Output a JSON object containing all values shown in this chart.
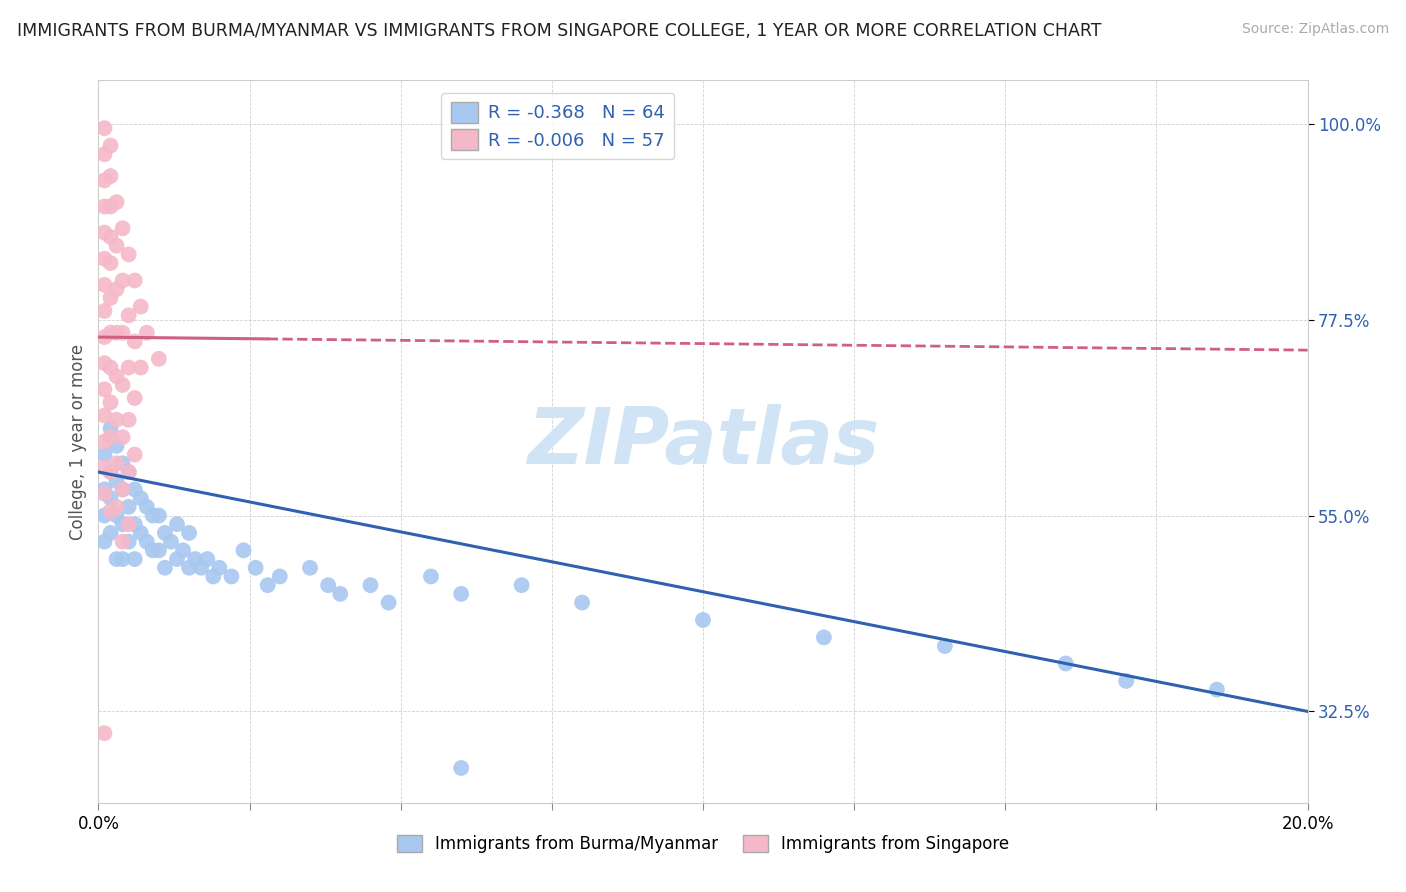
{
  "title": "IMMIGRANTS FROM BURMA/MYANMAR VS IMMIGRANTS FROM SINGAPORE COLLEGE, 1 YEAR OR MORE CORRELATION CHART",
  "source": "Source: ZipAtlas.com",
  "xlabel_blue": "Immigrants from Burma/Myanmar",
  "xlabel_pink": "Immigrants from Singapore",
  "ylabel": "College, 1 year or more",
  "xlim": [
    0.0,
    0.2
  ],
  "ylim": [
    0.22,
    1.05
  ],
  "yticks": [
    0.325,
    0.55,
    0.775,
    1.0
  ],
  "ytick_labels": [
    "32.5%",
    "55.0%",
    "77.5%",
    "100.0%"
  ],
  "xticks": [
    0.0,
    0.025,
    0.05,
    0.075,
    0.1,
    0.125,
    0.15,
    0.175,
    0.2
  ],
  "R_blue": -0.368,
  "N_blue": 64,
  "R_pink": -0.006,
  "N_pink": 57,
  "blue_color": "#a8c8f0",
  "pink_color": "#f5b8c8",
  "blue_line_color": "#3060b0",
  "pink_line_color": "#d06080",
  "watermark": "ZIPatlas",
  "watermark_color": "#d0e4f5",
  "background_color": "#ffffff",
  "title_fontsize": 12.5,
  "blue_scatter": [
    [
      0.001,
      0.62
    ],
    [
      0.001,
      0.58
    ],
    [
      0.001,
      0.55
    ],
    [
      0.001,
      0.52
    ],
    [
      0.002,
      0.65
    ],
    [
      0.002,
      0.6
    ],
    [
      0.002,
      0.57
    ],
    [
      0.002,
      0.53
    ],
    [
      0.003,
      0.63
    ],
    [
      0.003,
      0.59
    ],
    [
      0.003,
      0.55
    ],
    [
      0.003,
      0.5
    ],
    [
      0.004,
      0.61
    ],
    [
      0.004,
      0.58
    ],
    [
      0.004,
      0.54
    ],
    [
      0.004,
      0.5
    ],
    [
      0.005,
      0.6
    ],
    [
      0.005,
      0.56
    ],
    [
      0.005,
      0.52
    ],
    [
      0.006,
      0.58
    ],
    [
      0.006,
      0.54
    ],
    [
      0.006,
      0.5
    ],
    [
      0.007,
      0.57
    ],
    [
      0.007,
      0.53
    ],
    [
      0.008,
      0.56
    ],
    [
      0.008,
      0.52
    ],
    [
      0.009,
      0.55
    ],
    [
      0.009,
      0.51
    ],
    [
      0.01,
      0.55
    ],
    [
      0.01,
      0.51
    ],
    [
      0.011,
      0.53
    ],
    [
      0.011,
      0.49
    ],
    [
      0.012,
      0.52
    ],
    [
      0.013,
      0.54
    ],
    [
      0.013,
      0.5
    ],
    [
      0.014,
      0.51
    ],
    [
      0.015,
      0.53
    ],
    [
      0.015,
      0.49
    ],
    [
      0.016,
      0.5
    ],
    [
      0.017,
      0.49
    ],
    [
      0.018,
      0.5
    ],
    [
      0.019,
      0.48
    ],
    [
      0.02,
      0.49
    ],
    [
      0.022,
      0.48
    ],
    [
      0.024,
      0.51
    ],
    [
      0.026,
      0.49
    ],
    [
      0.028,
      0.47
    ],
    [
      0.03,
      0.48
    ],
    [
      0.035,
      0.49
    ],
    [
      0.038,
      0.47
    ],
    [
      0.04,
      0.46
    ],
    [
      0.045,
      0.47
    ],
    [
      0.048,
      0.45
    ],
    [
      0.055,
      0.48
    ],
    [
      0.06,
      0.46
    ],
    [
      0.07,
      0.47
    ],
    [
      0.08,
      0.45
    ],
    [
      0.1,
      0.43
    ],
    [
      0.12,
      0.41
    ],
    [
      0.14,
      0.4
    ],
    [
      0.16,
      0.38
    ],
    [
      0.17,
      0.36
    ],
    [
      0.185,
      0.35
    ],
    [
      0.06,
      0.26
    ]
  ],
  "pink_scatter": [
    [
      0.001,
      0.995
    ],
    [
      0.001,
      0.965
    ],
    [
      0.001,
      0.935
    ],
    [
      0.001,
      0.905
    ],
    [
      0.001,
      0.875
    ],
    [
      0.001,
      0.845
    ],
    [
      0.001,
      0.815
    ],
    [
      0.001,
      0.785
    ],
    [
      0.002,
      0.975
    ],
    [
      0.002,
      0.94
    ],
    [
      0.002,
      0.905
    ],
    [
      0.002,
      0.87
    ],
    [
      0.001,
      0.755
    ],
    [
      0.001,
      0.725
    ],
    [
      0.001,
      0.695
    ],
    [
      0.001,
      0.665
    ],
    [
      0.001,
      0.635
    ],
    [
      0.001,
      0.605
    ],
    [
      0.001,
      0.575
    ],
    [
      0.002,
      0.84
    ],
    [
      0.002,
      0.8
    ],
    [
      0.002,
      0.76
    ],
    [
      0.002,
      0.72
    ],
    [
      0.002,
      0.68
    ],
    [
      0.002,
      0.64
    ],
    [
      0.002,
      0.6
    ],
    [
      0.002,
      0.555
    ],
    [
      0.003,
      0.91
    ],
    [
      0.003,
      0.86
    ],
    [
      0.003,
      0.81
    ],
    [
      0.003,
      0.76
    ],
    [
      0.003,
      0.71
    ],
    [
      0.003,
      0.66
    ],
    [
      0.003,
      0.61
    ],
    [
      0.003,
      0.56
    ],
    [
      0.004,
      0.88
    ],
    [
      0.004,
      0.82
    ],
    [
      0.004,
      0.76
    ],
    [
      0.004,
      0.7
    ],
    [
      0.004,
      0.64
    ],
    [
      0.004,
      0.58
    ],
    [
      0.004,
      0.52
    ],
    [
      0.005,
      0.85
    ],
    [
      0.005,
      0.78
    ],
    [
      0.005,
      0.72
    ],
    [
      0.005,
      0.66
    ],
    [
      0.005,
      0.6
    ],
    [
      0.005,
      0.54
    ],
    [
      0.006,
      0.82
    ],
    [
      0.006,
      0.75
    ],
    [
      0.006,
      0.685
    ],
    [
      0.006,
      0.62
    ],
    [
      0.007,
      0.79
    ],
    [
      0.007,
      0.72
    ],
    [
      0.008,
      0.76
    ],
    [
      0.01,
      0.73
    ],
    [
      0.001,
      0.3
    ]
  ]
}
